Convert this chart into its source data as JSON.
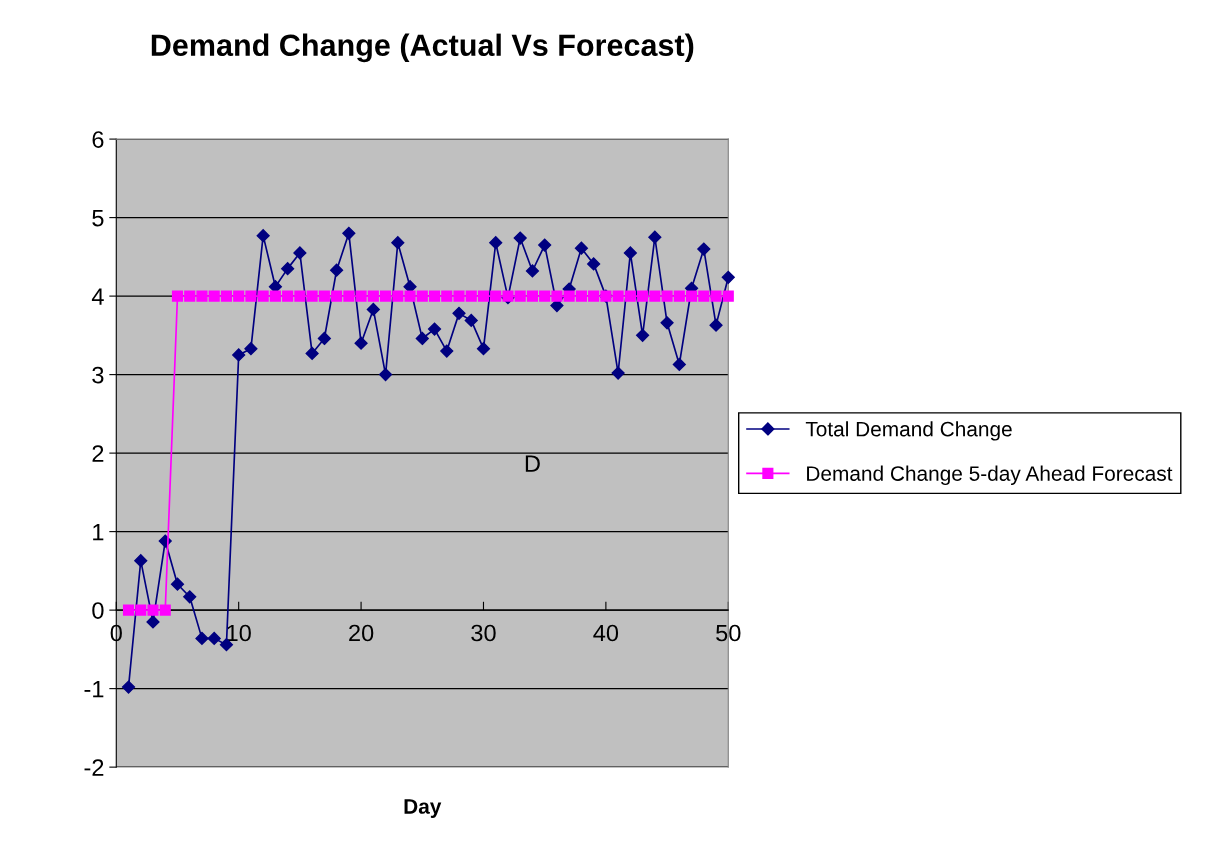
{
  "chart_data": {
    "type": "line",
    "title": "Demand Change (Actual Vs Forecast)",
    "xlabel": "Day",
    "x": [
      1,
      2,
      3,
      4,
      5,
      6,
      7,
      8,
      9,
      10,
      11,
      12,
      13,
      14,
      15,
      16,
      17,
      18,
      19,
      20,
      21,
      22,
      23,
      24,
      25,
      26,
      27,
      28,
      29,
      30,
      31,
      32,
      33,
      34,
      35,
      36,
      37,
      38,
      39,
      40,
      41,
      42,
      43,
      44,
      45,
      46,
      47,
      48,
      49,
      50
    ],
    "series": [
      {
        "name": "Total Demand Change",
        "color": "#000080",
        "marker": "diamond",
        "values": [
          -0.98,
          0.63,
          -0.15,
          0.88,
          0.33,
          0.17,
          -0.36,
          -0.36,
          -0.44,
          3.25,
          3.33,
          4.77,
          4.12,
          4.35,
          4.55,
          3.27,
          3.46,
          4.33,
          4.8,
          3.4,
          3.83,
          3.0,
          4.68,
          4.12,
          3.46,
          3.58,
          3.3,
          3.78,
          3.69,
          3.33,
          4.68,
          3.98,
          4.74,
          4.32,
          4.65,
          3.88,
          4.09,
          4.61,
          4.41,
          4.0,
          3.02,
          4.55,
          3.5,
          4.75,
          3.66,
          3.13,
          4.1,
          4.6,
          3.63,
          4.24
        ]
      },
      {
        "name": "Demand Change 5-day Ahead Forecast",
        "color": "#ff00ff",
        "marker": "square",
        "values": [
          0,
          0,
          0,
          0,
          4,
          4,
          4,
          4,
          4,
          4,
          4,
          4,
          4,
          4,
          4,
          4,
          4,
          4,
          4,
          4,
          4,
          4,
          4,
          4,
          4,
          4,
          4,
          4,
          4,
          4,
          4,
          4,
          4,
          4,
          4,
          4,
          4,
          4,
          4,
          4,
          4,
          4,
          4,
          4,
          4,
          4,
          4,
          4,
          4,
          4
        ]
      }
    ],
    "annotations": [
      "D"
    ],
    "xlim": [
      0,
      50
    ],
    "xticks": [
      0,
      10,
      20,
      30,
      40,
      50
    ],
    "ylim": [
      -2,
      6
    ],
    "yticks": [
      -2,
      -1,
      0,
      1,
      2,
      3,
      4,
      5,
      6
    ],
    "grid": "y",
    "legend": "right"
  }
}
